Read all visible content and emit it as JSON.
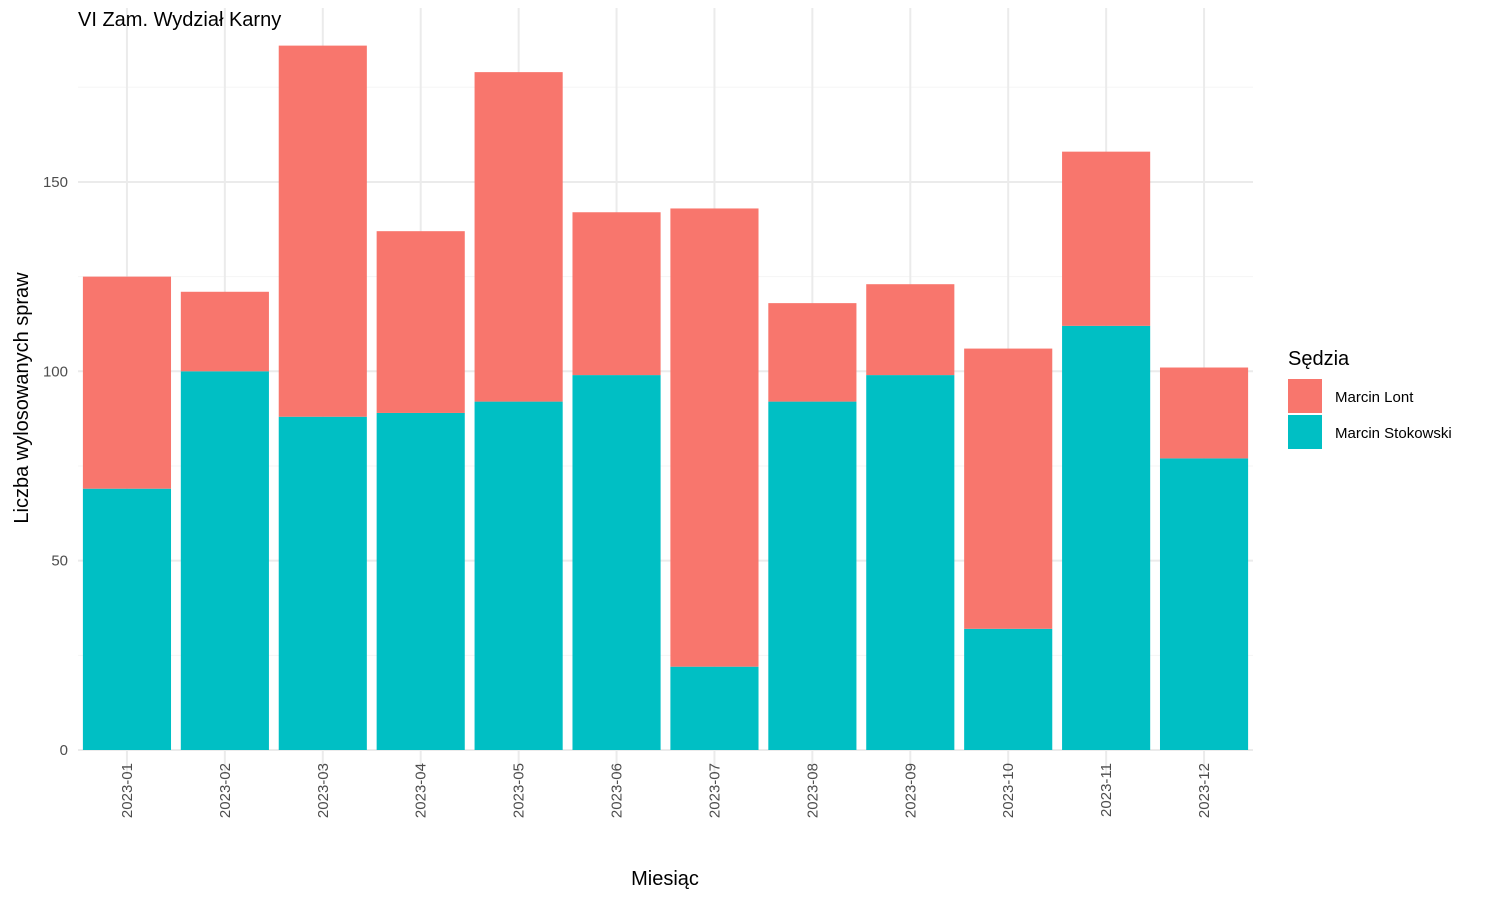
{
  "chart_data": {
    "type": "bar",
    "stacked": true,
    "title": "VI Zam. Wydział Karny",
    "xlabel": "Miesiąc",
    "ylabel": "Liczba wylosowanych spraw",
    "ylim": [
      0,
      195
    ],
    "yticks": [
      0,
      50,
      100,
      150
    ],
    "grid": true,
    "legend": {
      "title": "Sędzia",
      "position": "right"
    },
    "categories": [
      "2023-01",
      "2023-02",
      "2023-03",
      "2023-04",
      "2023-05",
      "2023-06",
      "2023-07",
      "2023-08",
      "2023-09",
      "2023-10",
      "2023-11",
      "2023-12"
    ],
    "series": [
      {
        "name": "Marcin Lont",
        "color": "#F8766D",
        "values": [
          56,
          21,
          98,
          48,
          87,
          43,
          121,
          26,
          24,
          74,
          46,
          24
        ]
      },
      {
        "name": "Marcin Stokowski",
        "color": "#00BFC4",
        "values": [
          69,
          100,
          88,
          89,
          92,
          99,
          22,
          92,
          99,
          32,
          112,
          77
        ]
      }
    ]
  }
}
